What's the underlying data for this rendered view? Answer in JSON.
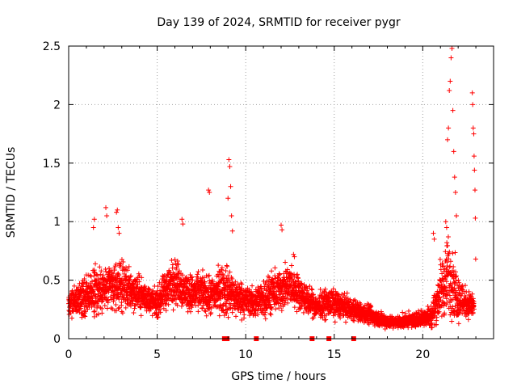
{
  "chart_data": {
    "type": "scatter",
    "title": "Day 139 of 2024, SRMTID for receiver pygr",
    "xlabel": "GPS time / hours",
    "ylabel": "SRMTID / TECUs",
    "xlim": [
      0,
      24
    ],
    "ylim": [
      0,
      2.5
    ],
    "x_ticks": [
      0,
      5,
      10,
      15,
      20
    ],
    "x_tick_labels": [
      "0",
      "5",
      "10",
      "15",
      "20"
    ],
    "y_ticks": [
      0,
      0.5,
      1,
      1.5,
      2,
      2.5
    ],
    "y_tick_labels": [
      "0",
      "0.5",
      "1",
      "1.5",
      "2",
      "2.5"
    ],
    "grid": true,
    "marker": "+",
    "series_color": "#ff0000",
    "envelope": {
      "hours": [
        0,
        0.5,
        1,
        1.5,
        2,
        2.5,
        3,
        3.5,
        4,
        4.5,
        5,
        5.5,
        6,
        6.5,
        7,
        7.5,
        8,
        8.5,
        9,
        9.5,
        10,
        10.5,
        11,
        11.5,
        12,
        12.5,
        13,
        13.5,
        14,
        14.5,
        15,
        15.5,
        16,
        16.5,
        17,
        17.5,
        18,
        18.5,
        19,
        19.5,
        20,
        20.5,
        21,
        21.5,
        22,
        22.5,
        22.9
      ],
      "median": [
        0.28,
        0.33,
        0.36,
        0.4,
        0.42,
        0.45,
        0.45,
        0.42,
        0.38,
        0.34,
        0.3,
        0.42,
        0.5,
        0.42,
        0.38,
        0.4,
        0.35,
        0.42,
        0.4,
        0.35,
        0.33,
        0.3,
        0.35,
        0.38,
        0.42,
        0.45,
        0.4,
        0.32,
        0.28,
        0.3,
        0.3,
        0.28,
        0.25,
        0.22,
        0.2,
        0.17,
        0.15,
        0.14,
        0.15,
        0.16,
        0.18,
        0.2,
        0.4,
        0.55,
        0.35,
        0.3,
        0.28
      ],
      "spread": [
        0.1,
        0.14,
        0.18,
        0.22,
        0.2,
        0.2,
        0.2,
        0.18,
        0.15,
        0.12,
        0.12,
        0.18,
        0.2,
        0.16,
        0.16,
        0.16,
        0.16,
        0.2,
        0.22,
        0.16,
        0.14,
        0.12,
        0.16,
        0.18,
        0.18,
        0.18,
        0.14,
        0.12,
        0.1,
        0.12,
        0.12,
        0.1,
        0.1,
        0.08,
        0.08,
        0.07,
        0.06,
        0.05,
        0.06,
        0.06,
        0.07,
        0.1,
        0.25,
        0.35,
        0.2,
        0.12,
        0.1
      ]
    },
    "outliers": [
      {
        "x": 1.4,
        "y": 0.95
      },
      {
        "x": 1.45,
        "y": 1.02
      },
      {
        "x": 2.1,
        "y": 1.12
      },
      {
        "x": 2.15,
        "y": 1.05
      },
      {
        "x": 2.7,
        "y": 1.08
      },
      {
        "x": 2.75,
        "y": 1.1
      },
      {
        "x": 2.8,
        "y": 0.95
      },
      {
        "x": 2.85,
        "y": 0.9
      },
      {
        "x": 6.4,
        "y": 1.02
      },
      {
        "x": 6.45,
        "y": 0.98
      },
      {
        "x": 7.9,
        "y": 1.27
      },
      {
        "x": 7.95,
        "y": 1.25
      },
      {
        "x": 9.0,
        "y": 1.2
      },
      {
        "x": 9.05,
        "y": 1.53
      },
      {
        "x": 9.1,
        "y": 1.47
      },
      {
        "x": 9.15,
        "y": 1.3
      },
      {
        "x": 9.2,
        "y": 1.05
      },
      {
        "x": 9.25,
        "y": 0.92
      },
      {
        "x": 12.0,
        "y": 0.97
      },
      {
        "x": 12.05,
        "y": 0.93
      },
      {
        "x": 12.7,
        "y": 0.72
      },
      {
        "x": 12.75,
        "y": 0.7
      },
      {
        "x": 20.6,
        "y": 0.9
      },
      {
        "x": 20.65,
        "y": 0.85
      },
      {
        "x": 21.3,
        "y": 1.0
      },
      {
        "x": 21.35,
        "y": 0.95
      },
      {
        "x": 21.4,
        "y": 1.7
      },
      {
        "x": 21.45,
        "y": 1.8
      },
      {
        "x": 21.5,
        "y": 2.12
      },
      {
        "x": 21.55,
        "y": 2.2
      },
      {
        "x": 21.6,
        "y": 2.4
      },
      {
        "x": 21.65,
        "y": 2.48
      },
      {
        "x": 21.7,
        "y": 1.95
      },
      {
        "x": 21.75,
        "y": 1.6
      },
      {
        "x": 21.8,
        "y": 1.38
      },
      {
        "x": 21.85,
        "y": 1.25
      },
      {
        "x": 21.9,
        "y": 1.05
      },
      {
        "x": 22.8,
        "y": 2.1
      },
      {
        "x": 22.82,
        "y": 2.0
      },
      {
        "x": 22.85,
        "y": 1.8
      },
      {
        "x": 22.88,
        "y": 1.75
      },
      {
        "x": 22.9,
        "y": 1.56
      },
      {
        "x": 22.92,
        "y": 1.44
      },
      {
        "x": 22.95,
        "y": 1.27
      },
      {
        "x": 22.97,
        "y": 1.03
      },
      {
        "x": 22.99,
        "y": 0.68
      }
    ],
    "zero_markers": [
      {
        "x": 8.8,
        "y": 0
      },
      {
        "x": 8.95,
        "y": 0
      },
      {
        "x": 10.6,
        "y": 0
      },
      {
        "x": 13.75,
        "y": 0
      },
      {
        "x": 14.7,
        "y": 0
      },
      {
        "x": 16.1,
        "y": 0
      }
    ]
  }
}
